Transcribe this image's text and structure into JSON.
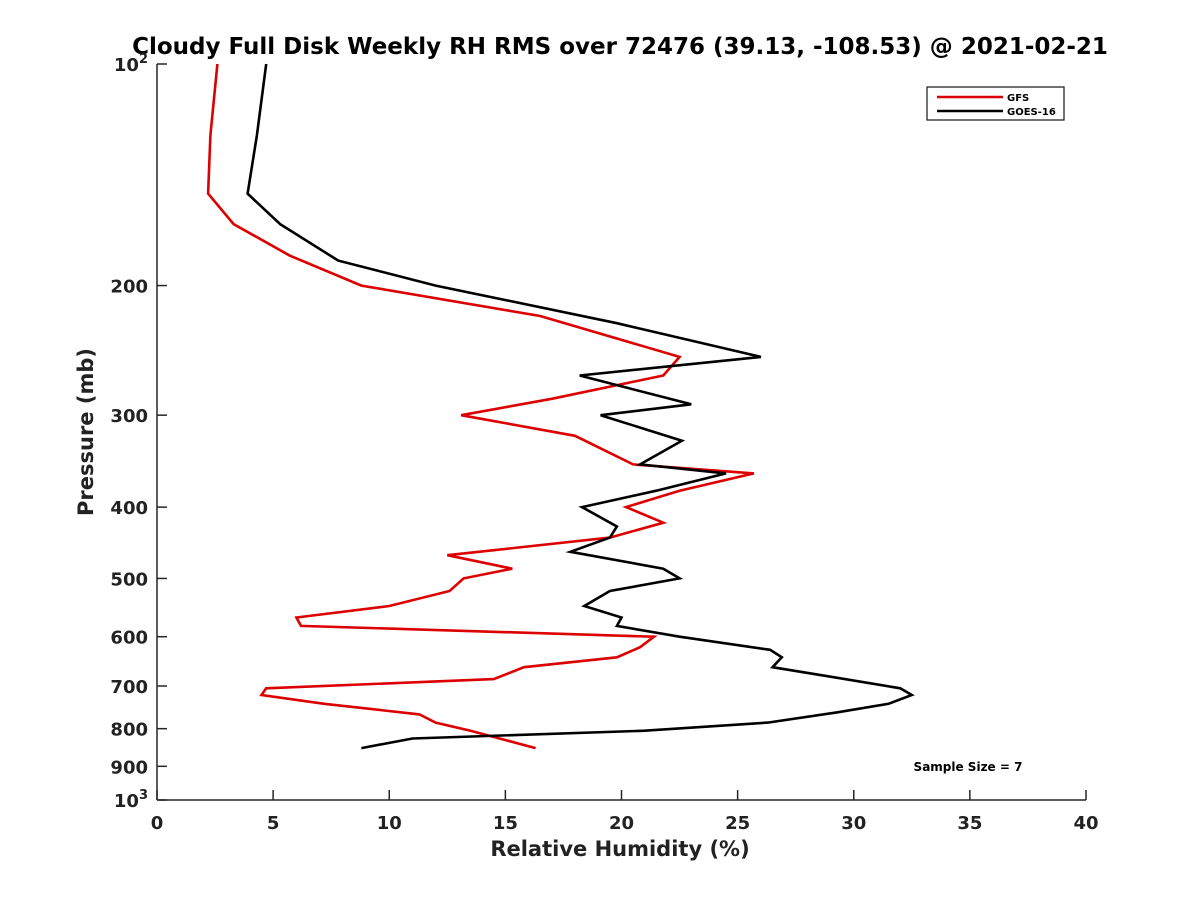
{
  "chart_data": {
    "type": "line",
    "title": "Cloudy Full Disk Weekly RH RMS over 72476 (39.13, -108.53) @ 2021-02-21",
    "xlabel": "Relative Humidity (%)",
    "ylabel": "Pressure (mb)",
    "xlim": [
      0,
      40
    ],
    "ylim": [
      100,
      1000
    ],
    "yscale": "log",
    "y_reversed": true,
    "x_ticks": [
      {
        "value": 0,
        "label": "0"
      },
      {
        "value": 5,
        "label": "5"
      },
      {
        "value": 10,
        "label": "10"
      },
      {
        "value": 15,
        "label": "15"
      },
      {
        "value": 20,
        "label": "20"
      },
      {
        "value": 25,
        "label": "25"
      },
      {
        "value": 30,
        "label": "30"
      },
      {
        "value": 35,
        "label": "35"
      },
      {
        "value": 40,
        "label": "40"
      }
    ],
    "y_ticks": [
      {
        "value": 100,
        "label": "10",
        "sup": "2"
      },
      {
        "value": 200,
        "label": "200"
      },
      {
        "value": 300,
        "label": "300"
      },
      {
        "value": 400,
        "label": "400"
      },
      {
        "value": 500,
        "label": "500"
      },
      {
        "value": 600,
        "label": "600"
      },
      {
        "value": 700,
        "label": "700"
      },
      {
        "value": 800,
        "label": "800"
      },
      {
        "value": 900,
        "label": "900"
      },
      {
        "value": 1000,
        "label": "10",
        "sup": "3"
      }
    ],
    "grid": false,
    "legend_position": "top-right",
    "annotation": "Sample Size = 7",
    "series": [
      {
        "name": "GFS",
        "color": "#dd0000",
        "points": [
          {
            "x": 2.6,
            "y": 100
          },
          {
            "x": 2.3,
            "y": 125
          },
          {
            "x": 2.2,
            "y": 150
          },
          {
            "x": 3.3,
            "y": 165
          },
          {
            "x": 5.7,
            "y": 182
          },
          {
            "x": 8.8,
            "y": 200
          },
          {
            "x": 16.5,
            "y": 220
          },
          {
            "x": 22.5,
            "y": 250
          },
          {
            "x": 21.8,
            "y": 265
          },
          {
            "x": 17.0,
            "y": 285
          },
          {
            "x": 13.1,
            "y": 300
          },
          {
            "x": 18.0,
            "y": 320
          },
          {
            "x": 20.5,
            "y": 350
          },
          {
            "x": 25.7,
            "y": 360
          },
          {
            "x": 22.5,
            "y": 380
          },
          {
            "x": 20.2,
            "y": 400
          },
          {
            "x": 21.8,
            "y": 420
          },
          {
            "x": 19.5,
            "y": 440
          },
          {
            "x": 12.5,
            "y": 465
          },
          {
            "x": 15.3,
            "y": 485
          },
          {
            "x": 13.2,
            "y": 500
          },
          {
            "x": 12.6,
            "y": 520
          },
          {
            "x": 10.0,
            "y": 545
          },
          {
            "x": 6.0,
            "y": 565
          },
          {
            "x": 6.2,
            "y": 580
          },
          {
            "x": 21.4,
            "y": 600
          },
          {
            "x": 20.8,
            "y": 620
          },
          {
            "x": 19.8,
            "y": 640
          },
          {
            "x": 15.8,
            "y": 660
          },
          {
            "x": 14.5,
            "y": 685
          },
          {
            "x": 4.7,
            "y": 705
          },
          {
            "x": 4.5,
            "y": 720
          },
          {
            "x": 7.2,
            "y": 740
          },
          {
            "x": 11.3,
            "y": 765
          },
          {
            "x": 12.0,
            "y": 785
          },
          {
            "x": 13.5,
            "y": 805
          },
          {
            "x": 16.3,
            "y": 850
          }
        ]
      },
      {
        "name": "GOES-16",
        "color": "#000000",
        "points": [
          {
            "x": 4.7,
            "y": 100
          },
          {
            "x": 4.3,
            "y": 125
          },
          {
            "x": 3.9,
            "y": 150
          },
          {
            "x": 5.3,
            "y": 165
          },
          {
            "x": 7.8,
            "y": 185
          },
          {
            "x": 12.0,
            "y": 200
          },
          {
            "x": 19.8,
            "y": 225
          },
          {
            "x": 26.0,
            "y": 250
          },
          {
            "x": 18.2,
            "y": 265
          },
          {
            "x": 23.0,
            "y": 290
          },
          {
            "x": 19.1,
            "y": 300
          },
          {
            "x": 22.6,
            "y": 325
          },
          {
            "x": 20.8,
            "y": 350
          },
          {
            "x": 24.5,
            "y": 360
          },
          {
            "x": 21.5,
            "y": 380
          },
          {
            "x": 18.3,
            "y": 400
          },
          {
            "x": 19.8,
            "y": 425
          },
          {
            "x": 19.5,
            "y": 440
          },
          {
            "x": 17.8,
            "y": 460
          },
          {
            "x": 21.8,
            "y": 485
          },
          {
            "x": 22.5,
            "y": 500
          },
          {
            "x": 19.5,
            "y": 520
          },
          {
            "x": 18.4,
            "y": 545
          },
          {
            "x": 20.0,
            "y": 565
          },
          {
            "x": 19.8,
            "y": 580
          },
          {
            "x": 22.5,
            "y": 600
          },
          {
            "x": 26.4,
            "y": 625
          },
          {
            "x": 26.9,
            "y": 640
          },
          {
            "x": 26.5,
            "y": 660
          },
          {
            "x": 29.0,
            "y": 680
          },
          {
            "x": 32.0,
            "y": 705
          },
          {
            "x": 32.5,
            "y": 720
          },
          {
            "x": 31.5,
            "y": 740
          },
          {
            "x": 29.3,
            "y": 760
          },
          {
            "x": 26.3,
            "y": 785
          },
          {
            "x": 21.0,
            "y": 805
          },
          {
            "x": 11.0,
            "y": 825
          },
          {
            "x": 8.8,
            "y": 850
          }
        ]
      }
    ]
  }
}
